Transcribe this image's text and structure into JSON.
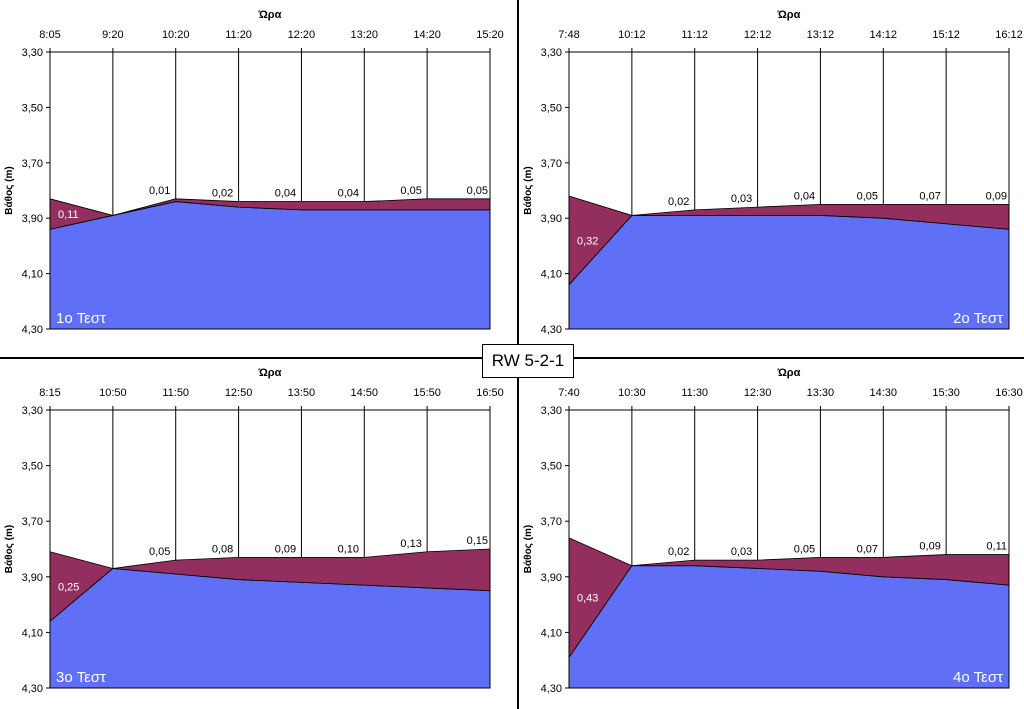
{
  "center_label": "RW 5-2-1",
  "colors": {
    "water": "#5f6ff6",
    "drawdown": "#922f5e",
    "frame": "#000000"
  },
  "chart_data": [
    {
      "type": "area",
      "test_label": "1ο Τεστ",
      "xlabel": "Ώρα",
      "ylabel": "Βάθος (m)",
      "y_ticks": [
        "3,30",
        "3,50",
        "3,70",
        "3,90",
        "4,10",
        "4,30"
      ],
      "ylim": [
        3.3,
        4.3
      ],
      "y_inverted": true,
      "x_ticks": [
        "8:05",
        "9:20",
        "10:20",
        "11:20",
        "12:20",
        "13:20",
        "14:20",
        "15:20"
      ],
      "x": [
        "8:05",
        "9:20",
        "10:20",
        "11:20",
        "12:20",
        "13:20",
        "14:20",
        "15:20"
      ],
      "series": [
        {
          "name": "",
          "values": [
            3.94,
            3.89,
            3.84,
            3.86,
            3.87,
            3.87,
            3.87,
            3.87
          ]
        },
        {
          "name": "",
          "values": [
            3.83,
            3.89,
            3.83,
            3.84,
            3.84,
            3.84,
            3.83,
            3.83
          ]
        }
      ],
      "data_labels": [
        "0,11",
        "",
        "0,01",
        "0,02",
        "0,04",
        "0,04",
        "0,05",
        "0,05"
      ]
    },
    {
      "type": "area",
      "test_label": "2ο Τεστ",
      "xlabel": "Ώρα",
      "ylabel": "Βάθος (m)",
      "y_ticks": [
        "3,30",
        "3,50",
        "3,70",
        "3,90",
        "4,10",
        "4,30"
      ],
      "ylim": [
        3.3,
        4.3
      ],
      "y_inverted": true,
      "x_ticks": [
        "7:48",
        "10:12",
        "11:12",
        "12:12",
        "13:12",
        "14:12",
        "15:12",
        "16:12"
      ],
      "x": [
        "7:48",
        "10:12",
        "11:12",
        "12:12",
        "13:12",
        "14:12",
        "15:12",
        "16:12"
      ],
      "series": [
        {
          "name": "",
          "values": [
            4.14,
            3.89,
            3.89,
            3.89,
            3.89,
            3.9,
            3.92,
            3.94
          ]
        },
        {
          "name": "",
          "values": [
            3.82,
            3.89,
            3.87,
            3.86,
            3.85,
            3.85,
            3.85,
            3.85
          ]
        }
      ],
      "data_labels": [
        "0,32",
        "",
        "0,02",
        "0,03",
        "0,04",
        "0,05",
        "0,07",
        "0,09"
      ]
    },
    {
      "type": "area",
      "test_label": "3ο Τεστ",
      "xlabel": "Ώρα",
      "ylabel": "Βάθος (m)",
      "y_ticks": [
        "3,30",
        "3,50",
        "3,70",
        "3,90",
        "4,10",
        "4,30"
      ],
      "ylim": [
        3.3,
        4.3
      ],
      "y_inverted": true,
      "x_ticks": [
        "8:15",
        "10:50",
        "11:50",
        "12:50",
        "13:50",
        "14:50",
        "15:50",
        "16:50"
      ],
      "x": [
        "8:15",
        "10:50",
        "11:50",
        "12:50",
        "13:50",
        "14:50",
        "15:50",
        "16:50"
      ],
      "series": [
        {
          "name": "",
          "values": [
            4.06,
            3.87,
            3.89,
            3.91,
            3.92,
            3.93,
            3.94,
            3.95
          ]
        },
        {
          "name": "",
          "values": [
            3.81,
            3.87,
            3.84,
            3.83,
            3.83,
            3.83,
            3.81,
            3.8
          ]
        }
      ],
      "data_labels": [
        "0,25",
        "",
        "0,05",
        "0,08",
        "0,09",
        "0,10",
        "0,13",
        "0,15"
      ]
    },
    {
      "type": "area",
      "test_label": "4ο Τεστ",
      "xlabel": "Ώρα",
      "ylabel": "Βάθος (m)",
      "y_ticks": [
        "3,30",
        "3,50",
        "3,70",
        "3,90",
        "4,10",
        "4,30"
      ],
      "ylim": [
        3.3,
        4.3
      ],
      "y_inverted": true,
      "x_ticks": [
        "7:40",
        "10:30",
        "11:30",
        "12:30",
        "13:30",
        "14:30",
        "15:30",
        "16:30"
      ],
      "x": [
        "7:40",
        "10:30",
        "11:30",
        "12:30",
        "13:30",
        "14:30",
        "15:30",
        "16:30"
      ],
      "series": [
        {
          "name": "",
          "values": [
            4.19,
            3.86,
            3.86,
            3.87,
            3.88,
            3.9,
            3.91,
            3.93
          ]
        },
        {
          "name": "",
          "values": [
            3.76,
            3.86,
            3.84,
            3.84,
            3.83,
            3.83,
            3.82,
            3.82
          ]
        }
      ],
      "data_labels": [
        "0,43",
        "",
        "0,02",
        "0,03",
        "0,05",
        "0,07",
        "0,09",
        "0,11"
      ]
    }
  ]
}
